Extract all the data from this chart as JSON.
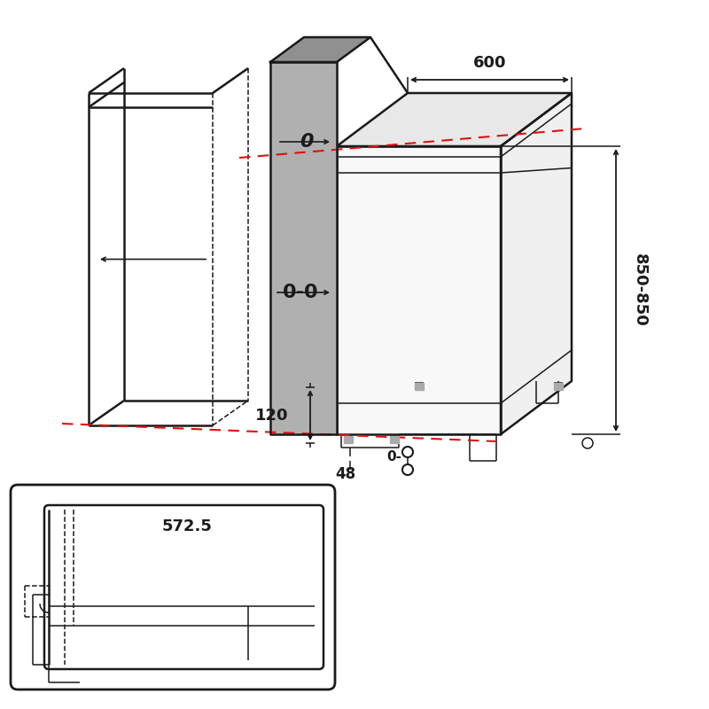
{
  "bg_color": "#ffffff",
  "lc": "#1a1a1a",
  "gray_color": "#a0a0a0",
  "gray_top_color": "#888888",
  "red_color": "#dd1111",
  "dim_600": "600",
  "dim_850": "850-850",
  "dim_120": "120",
  "dim_48": "48",
  "dim_0": "0",
  "dim_00": "0-0",
  "dim_0h": "0-",
  "dim_572": "572.5",
  "lw": 1.8,
  "lt": 1.1
}
